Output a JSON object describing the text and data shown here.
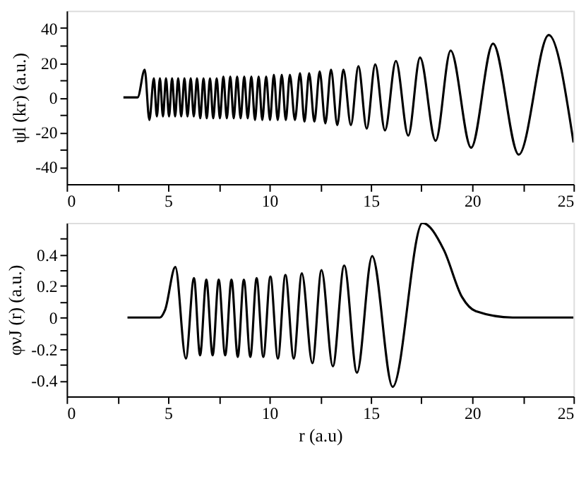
{
  "chart_data": [
    {
      "type": "line",
      "ylabel": "ψl (kr)  (a.u.)",
      "xlim": [
        0,
        25
      ],
      "ylim": [
        -50,
        50
      ],
      "xticks": [
        0,
        {
          "value": 2.5,
          "label": null
        },
        5,
        {
          "value": 7.5,
          "label": null
        },
        10,
        {
          "value": 12.5,
          "label": null
        },
        15,
        {
          "value": 17.5,
          "label": null
        },
        20,
        {
          "value": 22.5,
          "label": null
        },
        25
      ],
      "yticks": [
        -40,
        {
          "value": -30,
          "label": null
        },
        -20,
        {
          "value": -10,
          "label": null
        },
        0,
        {
          "value": 10,
          "label": null
        },
        20,
        {
          "value": 30,
          "label": null
        },
        40
      ],
      "grid": false,
      "series": [
        {
          "color": "#000000",
          "line_style": "solid",
          "x": [
            2.8,
            3.5,
            3.85,
            4.08,
            4.3,
            4.45,
            4.6,
            4.75,
            4.9,
            5.05,
            5.2,
            5.35,
            5.5,
            5.65,
            5.81,
            5.96,
            6.12,
            6.27,
            6.43,
            6.59,
            6.75,
            6.91,
            7.07,
            7.23,
            7.4,
            7.56,
            7.73,
            7.9,
            8.07,
            8.24,
            8.41,
            8.58,
            8.76,
            8.93,
            9.11,
            9.29,
            9.47,
            9.65,
            9.84,
            10.03,
            10.22,
            10.41,
            10.61,
            10.81,
            11.01,
            11.26,
            11.51,
            11.73,
            11.96,
            12.22,
            12.48,
            12.76,
            13.04,
            13.35,
            13.65,
            14.02,
            14.39,
            14.8,
            15.22,
            15.7,
            16.24,
            16.85,
            17.43,
            18.2,
            18.94,
            19.95,
            21.03,
            22.3,
            23.78,
            25
          ],
          "values": [
            0,
            0,
            16,
            -13,
            11,
            -11,
            11,
            -11,
            11,
            -11,
            11,
            -11,
            11,
            -11,
            11,
            -11,
            11,
            -11,
            11,
            -12,
            11,
            -12,
            11,
            -12,
            11,
            -12,
            12,
            -12,
            12,
            -12,
            12,
            -12,
            12,
            -12,
            12,
            -13,
            12,
            -13,
            12,
            -13,
            13,
            -13,
            13,
            -13,
            13,
            -13,
            14,
            -14,
            14,
            -14,
            15,
            -15,
            16,
            -16,
            16,
            -16,
            18,
            -18,
            19,
            -19,
            21,
            -22,
            23,
            -25,
            27,
            -29,
            31,
            -33,
            36,
            -26
          ]
        }
      ]
    },
    {
      "type": "line",
      "xlabel": "r (a.u)",
      "ylabel": "φνJ (r) (a.u.)",
      "xlim": [
        0,
        25
      ],
      "ylim": [
        -0.5,
        0.6
      ],
      "xticks": [
        0,
        {
          "value": 2.5,
          "label": null
        },
        5,
        {
          "value": 7.5,
          "label": null
        },
        10,
        {
          "value": 12.5,
          "label": null
        },
        15,
        {
          "value": 17.5,
          "label": null
        },
        20,
        {
          "value": 22.5,
          "label": null
        },
        25
      ],
      "yticks": [
        -0.4,
        {
          "value": -0.3,
          "label": null
        },
        -0.2,
        {
          "value": -0.1,
          "label": null
        },
        0,
        {
          "value": 0.1,
          "label": null
        },
        0.2,
        {
          "value": 0.3,
          "label": null
        },
        0.4,
        {
          "value": 0.5,
          "label": null
        }
      ],
      "grid": false,
      "series": [
        {
          "color": "#000000",
          "line_style": "solid",
          "x": [
            3,
            4.6,
            4.86,
            5.36,
            5.88,
            6.28,
            6.58,
            6.89,
            7.2,
            7.5,
            7.82,
            8.13,
            8.44,
            8.74,
            9.06,
            9.37,
            9.7,
            10.05,
            10.42,
            10.79,
            11.2,
            11.6,
            12.12,
            12.57,
            13.13,
            13.69,
            14.32,
            15.07,
            16.08,
            17.55,
            18.6,
            19.5,
            20.18,
            22,
            25
          ],
          "values": [
            0,
            0,
            0.05,
            0.32,
            -0.26,
            0.25,
            -0.24,
            0.24,
            -0.24,
            0.24,
            -0.24,
            0.24,
            -0.25,
            0.24,
            -0.25,
            0.25,
            -0.25,
            0.26,
            -0.26,
            0.27,
            -0.26,
            0.28,
            -0.29,
            0.3,
            -0.31,
            0.33,
            -0.35,
            0.39,
            -0.44,
            0.6,
            0.43,
            0.13,
            0.04,
            0,
            0
          ]
        }
      ]
    }
  ]
}
